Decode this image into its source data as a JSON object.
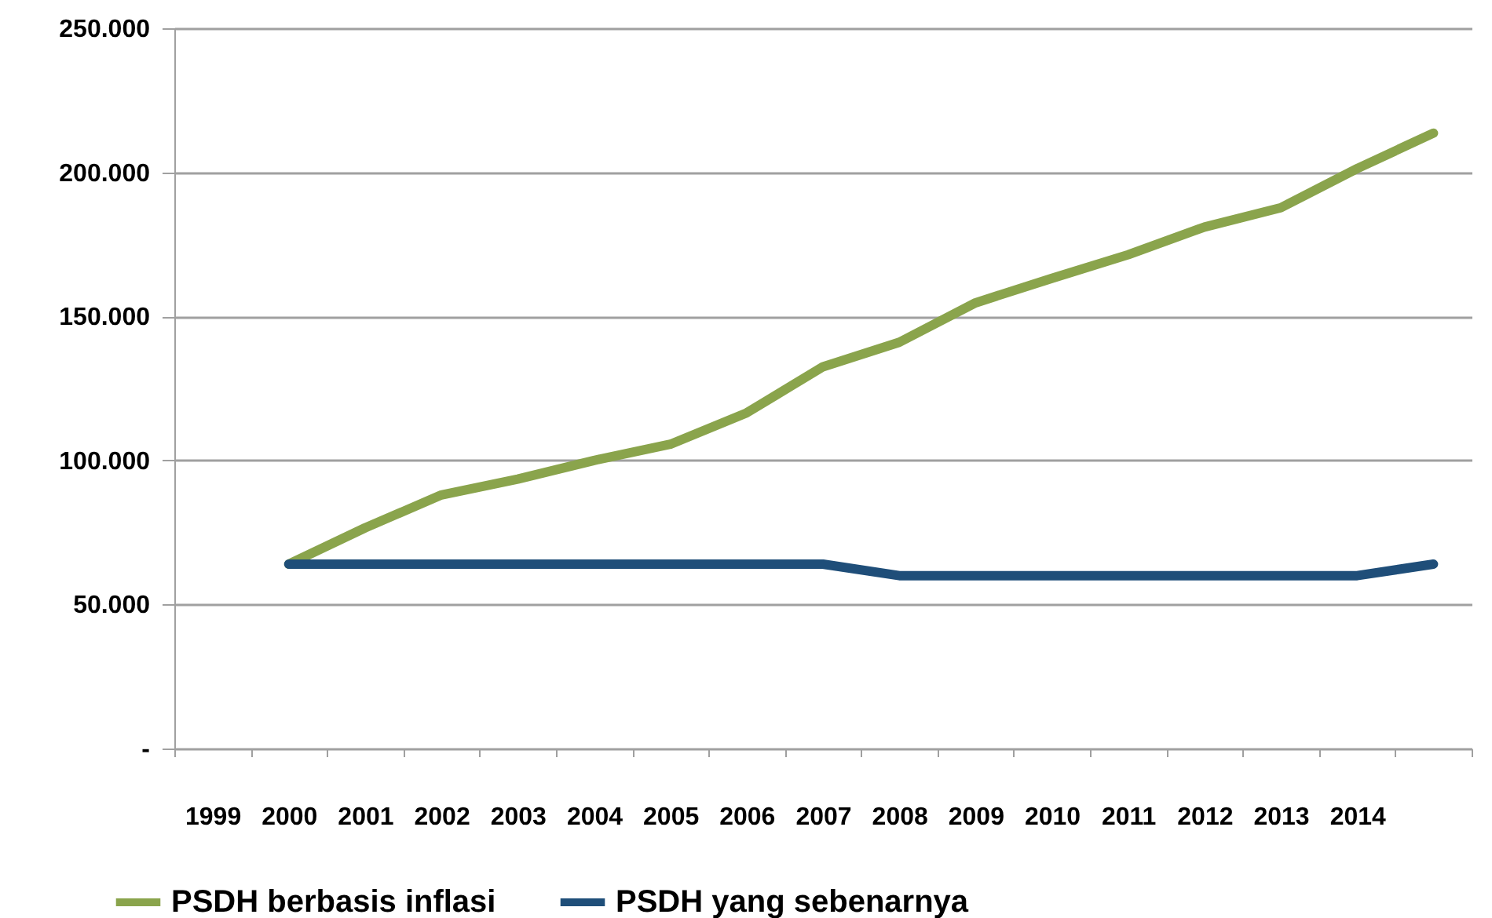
{
  "chart_data": {
    "type": "line",
    "categories": [
      "1999",
      "2000",
      "2001",
      "2002",
      "2003",
      "2004",
      "2005",
      "2006",
      "2007",
      "2008",
      "2009",
      "2010",
      "2011",
      "2012",
      "2013",
      "2014",
      null
    ],
    "series": [
      {
        "name": "PSDH berbasis inflasi",
        "color": "#8aa44c",
        "values": [
          null,
          64000,
          76600,
          88000,
          93500,
          100000,
          105600,
          116500,
          132500,
          141000,
          154700,
          163200,
          171400,
          181000,
          187700,
          201300,
          213600
        ]
      },
      {
        "name": "PSDH yang sebenarnya",
        "color": "#1f4e79",
        "values": [
          null,
          64000,
          64000,
          64000,
          64000,
          64000,
          64000,
          64000,
          64000,
          60000,
          60000,
          60000,
          60000,
          60000,
          60000,
          60000,
          64000
        ]
      }
    ],
    "ylim": [
      0,
      250000
    ],
    "yticks": [
      {
        "value": 0,
        "label": "-"
      },
      {
        "value": 50000,
        "label": "50.000"
      },
      {
        "value": 100000,
        "label": "100.000"
      },
      {
        "value": 150000,
        "label": "150.000"
      },
      {
        "value": 200000,
        "label": "200.000"
      },
      {
        "value": 250000,
        "label": "250.000"
      }
    ],
    "grid": "y",
    "legend": "bottom",
    "marker": "none",
    "line_style": "solid"
  }
}
